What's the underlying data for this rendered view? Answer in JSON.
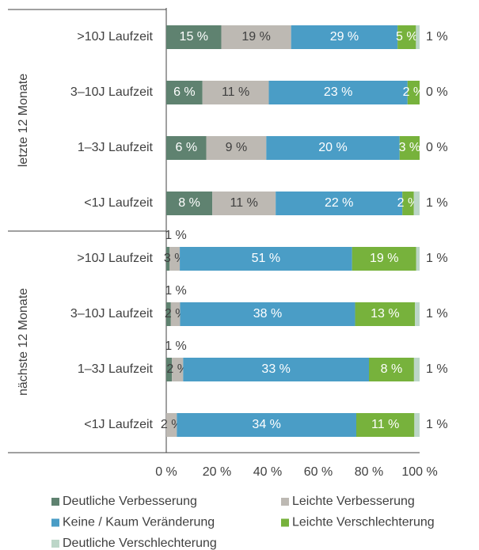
{
  "chart_data": {
    "type": "bar",
    "orientation": "horizontal",
    "stack": "percent",
    "groups": [
      {
        "label": "letzte 12 Monate",
        "size": 4
      },
      {
        "label": "nächste 12 Monate",
        "size": 4
      }
    ],
    "categories": [
      ">10J Laufzeit",
      "3–10J Laufzeit",
      "1–3J Laufzeit",
      "<1J Laufzeit",
      ">10J Laufzeit",
      "3–10J Laufzeit",
      "1–3J Laufzeit",
      "<1J Laufzeit"
    ],
    "series": [
      {
        "name": "Deutliche Verbesserung",
        "color": "#5f8270",
        "text_color": "#ffffff",
        "values": [
          15,
          6,
          6,
          8,
          1,
          1,
          1,
          0
        ],
        "value_labels": [
          "15 %",
          "6 %",
          "6 %",
          "8 %",
          "1 %",
          "1 %",
          "1 %",
          null
        ]
      },
      {
        "name": "Leichte Verbesserung",
        "color": "#bdb9b3",
        "text_color": "#404040",
        "values": [
          19,
          11,
          9,
          11,
          3,
          2,
          2,
          2
        ],
        "value_labels": [
          "19 %",
          "11 %",
          "9 %",
          "11 %",
          "3 %",
          "2 %",
          "2 %",
          "2 %"
        ]
      },
      {
        "name": "Keine / Kaum Veränderung",
        "color": "#4a9dc6",
        "text_color": "#ffffff",
        "values": [
          29,
          23,
          20,
          22,
          51,
          38,
          33,
          34
        ],
        "value_labels": [
          "29 %",
          "23 %",
          "20 %",
          "22 %",
          "51 %",
          "38 %",
          "33 %",
          "34 %"
        ]
      },
      {
        "name": "Leichte Verschlechterung",
        "color": "#77b23c",
        "text_color": "#ffffff",
        "values": [
          5,
          2,
          3,
          2,
          19,
          13,
          8,
          11
        ],
        "value_labels": [
          "5 %",
          "2 %",
          "3 %",
          "2 %",
          "19 %",
          "13 %",
          "8 %",
          "11 %"
        ]
      },
      {
        "name": "Deutliche Verschlechterung",
        "color": "#bcd6c8",
        "text_color": "#404040",
        "values": [
          1,
          0,
          0,
          1,
          1,
          1,
          1,
          1
        ],
        "value_labels": [
          "1 %",
          "0 %",
          "0 %",
          "1 %",
          "1 %",
          "1 %",
          "1 %",
          "1 %"
        ]
      }
    ],
    "xlim": [
      0,
      100
    ],
    "xticks": [
      {
        "value": 0,
        "label": "0 %"
      },
      {
        "value": 20,
        "label": "20 %"
      },
      {
        "value": 40,
        "label": "40 %"
      },
      {
        "value": 60,
        "label": "60 %"
      },
      {
        "value": 80,
        "label": "80 %"
      },
      {
        "value": 100,
        "label": "100 %"
      }
    ]
  }
}
